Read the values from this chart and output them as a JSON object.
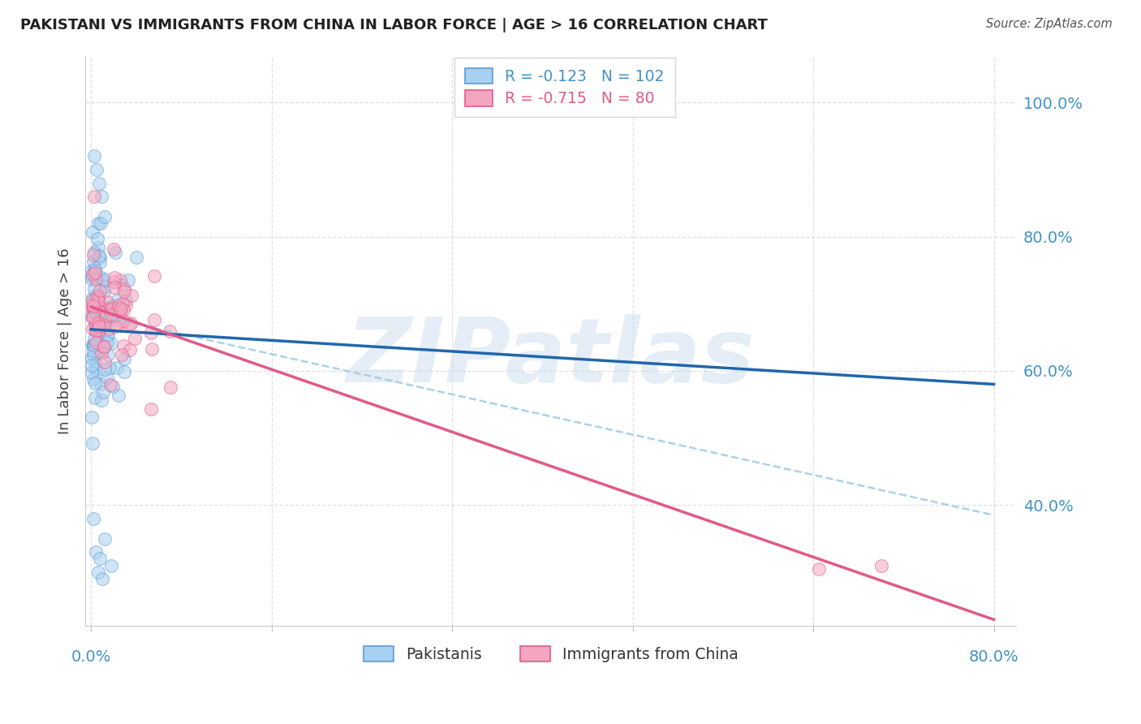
{
  "title": "PAKISTANI VS IMMIGRANTS FROM CHINA IN LABOR FORCE | AGE > 16 CORRELATION CHART",
  "source": "Source: ZipAtlas.com",
  "ylabel": "In Labor Force | Age > 16",
  "legend_label1": "Pakistanis",
  "legend_label2": "Immigrants from China",
  "R1": -0.123,
  "N1": 102,
  "R2": -0.715,
  "N2": 80,
  "color_blue_fill": "#a8d0f0",
  "color_blue_edge": "#5b9bd5",
  "color_pink_fill": "#f4a6c0",
  "color_pink_edge": "#e05a8a",
  "color_blue_line": "#2166ac",
  "color_pink_line": "#e05a8a",
  "color_dashed": "#9ecae1",
  "color_axis_label": "#4292c6",
  "watermark": "ZIPatlas",
  "watermark_color": "#c6dbef",
  "xlim": [
    -0.005,
    0.82
  ],
  "ylim": [
    0.22,
    1.07
  ],
  "ytick_vals": [
    0.4,
    0.6,
    0.8,
    1.0
  ],
  "ytick_labels": [
    "40.0%",
    "60.0%",
    "80.0%",
    "100.0%"
  ],
  "xtick_vals": [
    0.0,
    0.16,
    0.32,
    0.48,
    0.64,
    0.8
  ],
  "grid_color": "#d9d9d9",
  "background": "#ffffff"
}
